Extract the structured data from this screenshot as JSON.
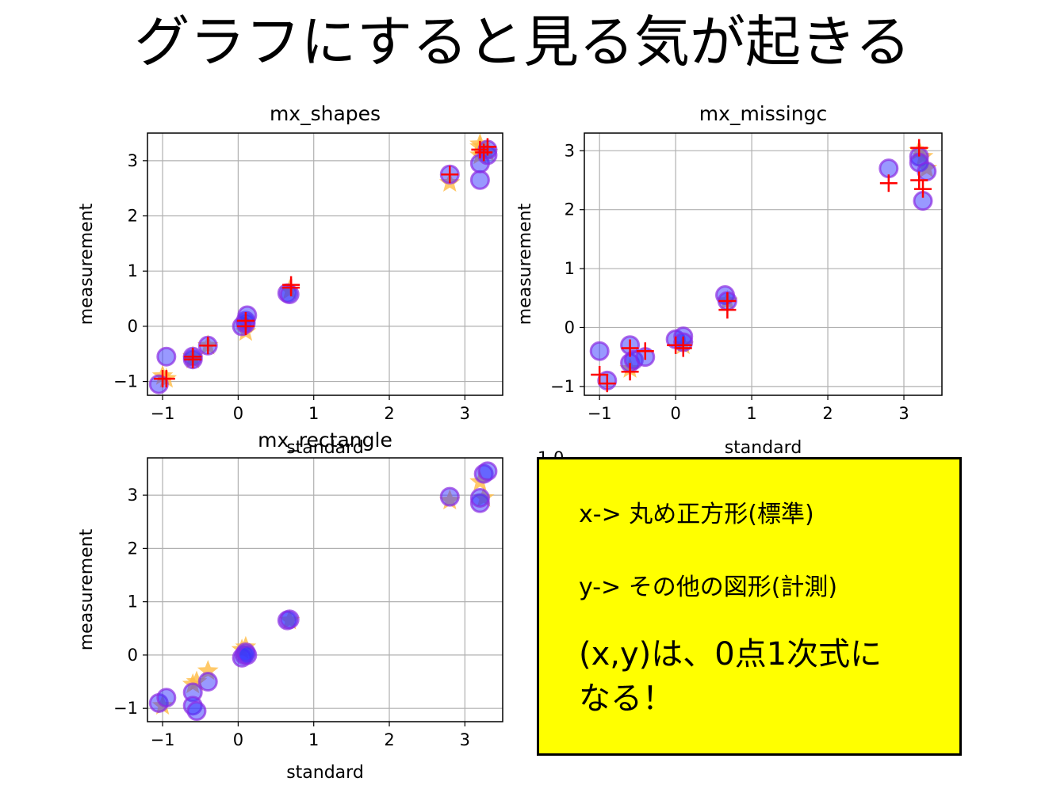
{
  "slide": {
    "title": "グラフにすると見る気が起きる"
  },
  "note": {
    "lines": [
      "x-> 丸め正方形(標準)",
      "y-> その他の図形(計測)",
      "(x,y)は、0点1次式に",
      "なる！"
    ]
  },
  "stray_tick_label": "1.0",
  "colors": {
    "circle_fill": "#3333ff",
    "circle_edge": "#8a2be2",
    "star": "#ffbb44",
    "cross": "#ff0000",
    "note_bg": "#ffff00"
  },
  "chart_data": [
    {
      "type": "scatter",
      "title": "mx_shapes",
      "xlabel": "standard",
      "ylabel": "measurement",
      "xlim": [
        -1.2,
        3.5
      ],
      "ylim": [
        -1.25,
        3.5
      ],
      "xticks": [
        -1,
        0,
        1,
        2,
        3
      ],
      "yticks": [
        -1,
        0,
        1,
        2,
        3
      ],
      "grid": true,
      "series": [
        {
          "marker": "star",
          "x": [
            -1.0,
            -0.95,
            -0.6,
            -0.6,
            -0.4,
            0.1,
            0.1,
            0.68,
            2.8,
            3.2,
            3.2,
            3.2,
            3.3
          ],
          "y": [
            -0.9,
            -0.95,
            -0.55,
            -0.6,
            -0.35,
            0.05,
            -0.1,
            0.65,
            2.6,
            3.3,
            3.1,
            3.25,
            3.15
          ]
        },
        {
          "marker": "circle",
          "x": [
            -1.05,
            -0.95,
            -0.6,
            -0.6,
            -0.4,
            0.05,
            0.1,
            0.1,
            0.12,
            0.65,
            0.68,
            2.8,
            3.2,
            3.2,
            3.3,
            3.3
          ],
          "y": [
            -1.05,
            -0.55,
            -0.6,
            -0.55,
            -0.35,
            0.0,
            0.05,
            0.1,
            0.2,
            0.6,
            0.58,
            2.75,
            2.65,
            2.95,
            3.1,
            3.2
          ]
        },
        {
          "marker": "cross",
          "x": [
            -1.0,
            -0.95,
            -0.6,
            -0.6,
            -0.4,
            0.1,
            0.1,
            0.7,
            0.7,
            2.8,
            3.2,
            3.25,
            3.3
          ],
          "y": [
            -0.95,
            -0.95,
            -0.55,
            -0.6,
            -0.35,
            0.1,
            0.0,
            0.7,
            0.75,
            2.75,
            3.2,
            3.15,
            3.25
          ]
        }
      ]
    },
    {
      "type": "scatter",
      "title": "mx_missingc",
      "xlabel": "standard",
      "ylabel": "measurement",
      "xlim": [
        -1.2,
        3.5
      ],
      "ylim": [
        -1.15,
        3.3
      ],
      "xticks": [
        -1,
        0,
        1,
        2,
        3
      ],
      "yticks": [
        -1,
        0,
        1,
        2,
        3
      ],
      "grid": true,
      "series": [
        {
          "marker": "star",
          "x": [
            -0.6,
            0.1,
            0.68,
            3.2,
            3.25,
            3.3
          ],
          "y": [
            -0.7,
            -0.3,
            0.45,
            3.0,
            2.9,
            2.7
          ]
        },
        {
          "marker": "circle",
          "x": [
            -1.0,
            -0.9,
            -0.6,
            -0.6,
            -0.55,
            -0.4,
            0.0,
            0.1,
            0.1,
            0.65,
            0.68,
            2.8,
            3.2,
            3.2,
            3.25,
            3.3
          ],
          "y": [
            -0.4,
            -0.9,
            -0.3,
            -0.6,
            -0.55,
            -0.5,
            -0.2,
            -0.15,
            -0.25,
            0.55,
            0.45,
            2.7,
            2.9,
            2.8,
            2.15,
            2.65
          ]
        },
        {
          "marker": "cross",
          "x": [
            -1.0,
            -0.9,
            -0.6,
            -0.6,
            -0.4,
            0.0,
            0.1,
            0.1,
            0.68,
            0.68,
            2.8,
            3.2,
            3.2,
            3.25
          ],
          "y": [
            -0.8,
            -0.95,
            -0.35,
            -0.75,
            -0.4,
            -0.3,
            -0.35,
            -0.3,
            0.45,
            0.3,
            2.45,
            3.05,
            2.5,
            2.35
          ]
        }
      ]
    },
    {
      "type": "scatter",
      "title": "mx_rectangle",
      "xlabel": "standard",
      "ylabel": "measurement",
      "xlim": [
        -1.2,
        3.5
      ],
      "ylim": [
        -1.25,
        3.7
      ],
      "xticks": [
        -1,
        0,
        1,
        2,
        3
      ],
      "yticks": [
        -1,
        0,
        1,
        2,
        3
      ],
      "grid": true,
      "series": [
        {
          "marker": "star",
          "x": [
            -1.0,
            -0.6,
            -0.55,
            -0.4,
            0.05,
            0.1,
            0.68,
            2.8,
            3.2,
            3.25
          ],
          "y": [
            -0.95,
            -0.55,
            -0.5,
            -0.3,
            0.1,
            0.15,
            0.65,
            2.9,
            3.25,
            2.95
          ]
        },
        {
          "marker": "circle",
          "x": [
            -1.05,
            -0.95,
            -0.6,
            -0.6,
            -0.55,
            -0.4,
            0.05,
            0.08,
            0.1,
            0.12,
            0.65,
            0.68,
            2.8,
            3.2,
            3.2,
            3.25,
            3.3
          ],
          "y": [
            -0.9,
            -0.8,
            -0.7,
            -0.95,
            -1.05,
            -0.5,
            -0.05,
            0.0,
            0.05,
            0.0,
            0.65,
            0.67,
            2.97,
            2.85,
            2.95,
            3.4,
            3.45
          ]
        }
      ]
    }
  ]
}
